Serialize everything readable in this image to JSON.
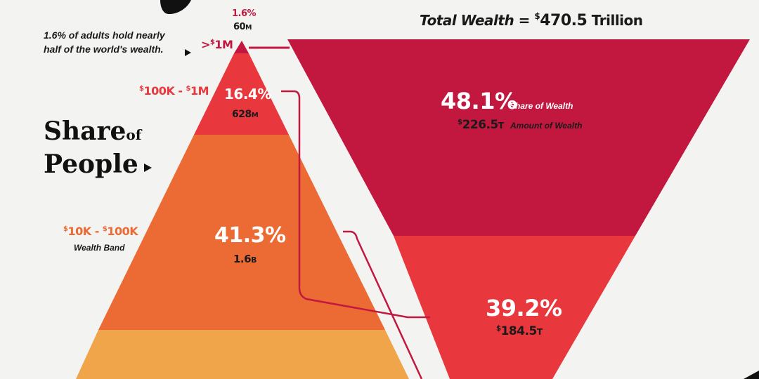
{
  "header": {
    "total_label": "Total Wealth =",
    "total_currency": "$",
    "total_value": "470.5",
    "total_unit": "Trillion"
  },
  "note": "1.6% of adults hold nearly half of the world's wealth.",
  "share_title": {
    "line1": "Share",
    "of": "of",
    "line2": "People"
  },
  "colors": {
    "background": "#f3f3f1",
    "tier_over_1m": "#c2183f",
    "tier_100k_1m": "#e8383d",
    "tier_10k_100k": "#ec6a33",
    "tier_under_10k": "#f0a54a",
    "connector": "#c2183f"
  },
  "tiers": [
    {
      "band_prefix": ">",
      "band_currency": "$",
      "band": "1M",
      "people_pct": "1.6%",
      "people_count": "60",
      "people_unit": "M",
      "color": "#c2183f"
    },
    {
      "band_currency_a": "$",
      "band_a": "100K",
      "band_sep": " - ",
      "band_currency_b": "$",
      "band_b": "1M",
      "people_pct": "16.4%",
      "people_count": "628",
      "people_unit": "M",
      "color": "#e8383d"
    },
    {
      "band_currency_a": "$",
      "band_a": "10K",
      "band_sep": " - ",
      "band_currency_b": "$",
      "band_b": "100K",
      "band_sub": "Wealth Band",
      "people_pct": "41.3%",
      "people_count": "1.6",
      "people_unit": "B",
      "color": "#ec6a33"
    },
    {
      "color": "#f0a54a"
    }
  ],
  "wealth": [
    {
      "share_pct": "48.1%",
      "share_label": "Share of Wealth",
      "amount_currency": "$",
      "amount": "226.5",
      "amount_unit": "T",
      "amount_label": "Amount of Wealth",
      "color": "#c2183f"
    },
    {
      "share_pct": "39.2%",
      "amount_currency": "$",
      "amount": "184.5",
      "amount_unit": "T",
      "color": "#e8383d"
    }
  ]
}
